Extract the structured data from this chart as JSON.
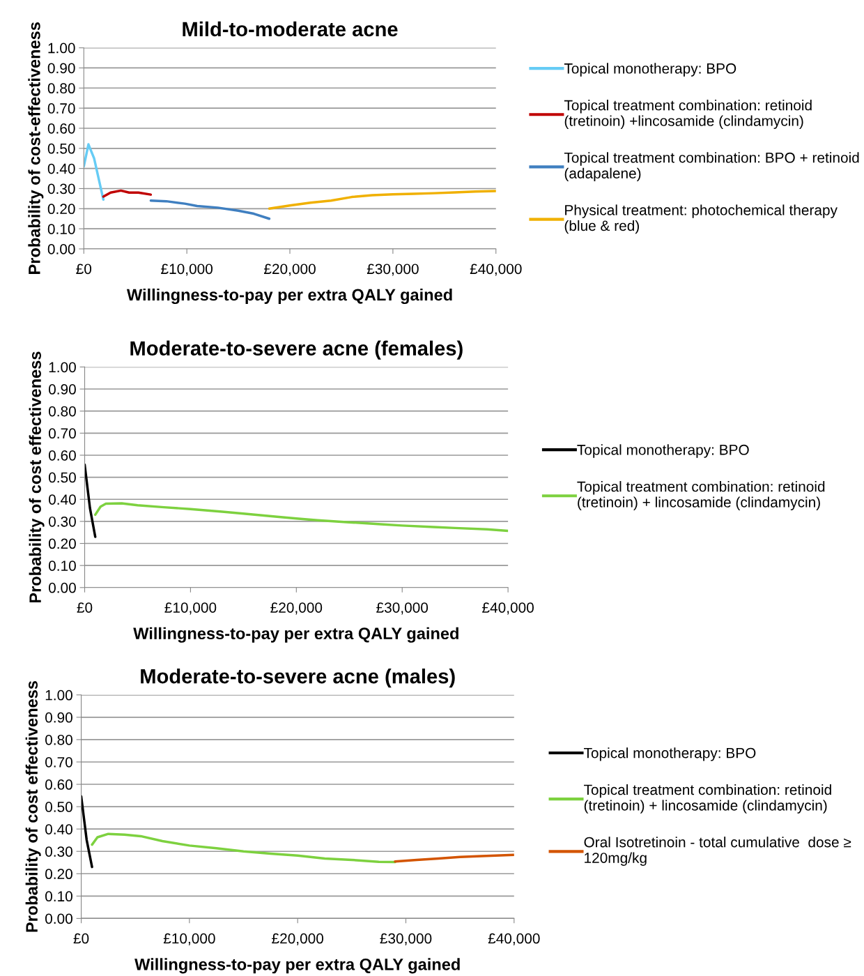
{
  "chart_data": [
    {
      "type": "line",
      "title": "Mild-to-moderate acne",
      "xlabel": "Willingness-to-pay per extra QALY gained",
      "ylabel": "Probability of cost-effectiveness",
      "xlim": [
        0,
        40000
      ],
      "xticks": [
        {
          "value": 0,
          "label": "£0"
        },
        {
          "value": 10000,
          "label": "£10,000"
        },
        {
          "value": 20000,
          "label": "£20,000"
        },
        {
          "value": 30000,
          "label": "£30,000"
        },
        {
          "value": 40000,
          "label": "£40,000"
        }
      ],
      "ylim": [
        0,
        1
      ],
      "yticks": [
        {
          "value": 0,
          "label": "0.00"
        },
        {
          "value": 0.1,
          "label": "0.10"
        },
        {
          "value": 0.2,
          "label": "0.20"
        },
        {
          "value": 0.3,
          "label": "0.30"
        },
        {
          "value": 0.4,
          "label": "0.40"
        },
        {
          "value": 0.5,
          "label": "0.50"
        },
        {
          "value": 0.6,
          "label": "0.60"
        },
        {
          "value": 0.7,
          "label": "0.70"
        },
        {
          "value": 0.8,
          "label": "0.80"
        },
        {
          "value": 0.9,
          "label": "0.90"
        },
        {
          "value": 1,
          "label": "1.00"
        }
      ],
      "grid": "y",
      "legend": "right",
      "series": [
        {
          "name": "Topical monotherapy: BPO",
          "color": "#66ccf5",
          "x": [
            0,
            450,
            1000,
            1900
          ],
          "values": [
            0.41,
            0.52,
            0.45,
            0.245
          ]
        },
        {
          "name": "Topical treatment combination: retinoid (tretinoin) +lincosamide (clindamycin)",
          "color": "#c00000",
          "x": [
            1900,
            2600,
            3600,
            4400,
            5300,
            6500
          ],
          "values": [
            0.26,
            0.28,
            0.29,
            0.28,
            0.28,
            0.27
          ]
        },
        {
          "name": "Topical treatment combination: BPO + retinoid (adapalene)",
          "color": "#3f7fc0",
          "x": [
            6500,
            8000,
            9800,
            11000,
            13000,
            15000,
            16500,
            18000
          ],
          "values": [
            0.24,
            0.237,
            0.225,
            0.213,
            0.205,
            0.19,
            0.175,
            0.15
          ]
        },
        {
          "name": "Physical treatment: photochemical therapy (blue & red)",
          "color": "#f0b000",
          "x": [
            18000,
            20000,
            22000,
            24000,
            26000,
            28000,
            30000,
            32000,
            34000,
            36000,
            38000,
            40000
          ],
          "values": [
            0.2,
            0.216,
            0.23,
            0.24,
            0.258,
            0.267,
            0.271,
            0.274,
            0.277,
            0.281,
            0.285,
            0.288
          ]
        }
      ]
    },
    {
      "type": "line",
      "title": "Moderate-to-severe acne (females)",
      "xlabel": "Willingness-to-pay per extra QALY gained",
      "ylabel": "Probability of cost effectiveness",
      "xlim": [
        0,
        40000
      ],
      "xticks": [
        {
          "value": 0,
          "label": "£0"
        },
        {
          "value": 10000,
          "label": "£10,000"
        },
        {
          "value": 20000,
          "label": "£20,000"
        },
        {
          "value": 30000,
          "label": "£30,000"
        },
        {
          "value": 40000,
          "label": "£40,000"
        }
      ],
      "ylim": [
        0,
        1
      ],
      "yticks": [
        {
          "value": 0,
          "label": "0.00"
        },
        {
          "value": 0.1,
          "label": "0.10"
        },
        {
          "value": 0.2,
          "label": "0.20"
        },
        {
          "value": 0.3,
          "label": "0.30"
        },
        {
          "value": 0.4,
          "label": "0.40"
        },
        {
          "value": 0.5,
          "label": "0.50"
        },
        {
          "value": 0.6,
          "label": "0.60"
        },
        {
          "value": 0.7,
          "label": "0.70"
        },
        {
          "value": 0.8,
          "label": "0.80"
        },
        {
          "value": 0.9,
          "label": "0.90"
        },
        {
          "value": 1,
          "label": "1.00"
        }
      ],
      "grid": "y",
      "legend": "right",
      "series": [
        {
          "name": "Topical monotherapy: BPO",
          "color": "#000000",
          "x": [
            0,
            500,
            1000
          ],
          "values": [
            0.557,
            0.36,
            0.23
          ]
        },
        {
          "name": "Topical treatment combination: retinoid (tretinoin) + lincosamide (clindamycin)",
          "color": "#7dd13f",
          "x": [
            1000,
            1500,
            2000,
            3500,
            5000,
            7500,
            10000,
            13000,
            15000,
            18000,
            20000,
            22000,
            25000,
            28000,
            30000,
            33000,
            35000,
            38000,
            40000
          ],
          "values": [
            0.33,
            0.367,
            0.38,
            0.382,
            0.373,
            0.364,
            0.356,
            0.344,
            0.335,
            0.322,
            0.313,
            0.305,
            0.296,
            0.287,
            0.281,
            0.274,
            0.27,
            0.264,
            0.257
          ]
        }
      ]
    },
    {
      "type": "line",
      "title": "Moderate-to-severe acne (males)",
      "xlabel": "Willingness-to-pay per extra QALY gained",
      "ylabel": "Probability of cost effectiveness",
      "xlim": [
        0,
        40000
      ],
      "xticks": [
        {
          "value": 0,
          "label": "£0"
        },
        {
          "value": 10000,
          "label": "£10,000"
        },
        {
          "value": 20000,
          "label": "£20,000"
        },
        {
          "value": 30000,
          "label": "£30,000"
        },
        {
          "value": 40000,
          "label": "£40,000"
        }
      ],
      "ylim": [
        0,
        1
      ],
      "yticks": [
        {
          "value": 0,
          "label": "0.00"
        },
        {
          "value": 0.1,
          "label": "0.10"
        },
        {
          "value": 0.2,
          "label": "0.20"
        },
        {
          "value": 0.3,
          "label": "0.30"
        },
        {
          "value": 0.4,
          "label": "0.40"
        },
        {
          "value": 0.5,
          "label": "0.50"
        },
        {
          "value": 0.6,
          "label": "0.60"
        },
        {
          "value": 0.7,
          "label": "0.70"
        },
        {
          "value": 0.8,
          "label": "0.80"
        },
        {
          "value": 0.9,
          "label": "0.90"
        },
        {
          "value": 1,
          "label": "1.00"
        }
      ],
      "grid": "y",
      "legend": "right",
      "series": [
        {
          "name": "Topical monotherapy: BPO",
          "color": "#000000",
          "x": [
            0,
            500,
            1000
          ],
          "values": [
            0.546,
            0.352,
            0.23
          ]
        },
        {
          "name": "Topical treatment combination: retinoid (tretinoin) + lincosamide (clindamycin)",
          "color": "#7dd13f",
          "x": [
            1000,
            1500,
            2500,
            4000,
            5500,
            7500,
            10000,
            12500,
            15000,
            17500,
            20000,
            22500,
            25000,
            27500,
            29000
          ],
          "values": [
            0.33,
            0.363,
            0.378,
            0.375,
            0.368,
            0.346,
            0.326,
            0.314,
            0.3,
            0.29,
            0.281,
            0.268,
            0.262,
            0.253,
            0.252
          ]
        },
        {
          "name": "Oral Isotretinoin - total cumulative  dose ≥ 120mg/kg",
          "color": "#d35400",
          "x": [
            29000,
            31000,
            33000,
            35000,
            37000,
            40000
          ],
          "values": [
            0.255,
            0.262,
            0.268,
            0.275,
            0.279,
            0.284
          ]
        }
      ]
    }
  ]
}
